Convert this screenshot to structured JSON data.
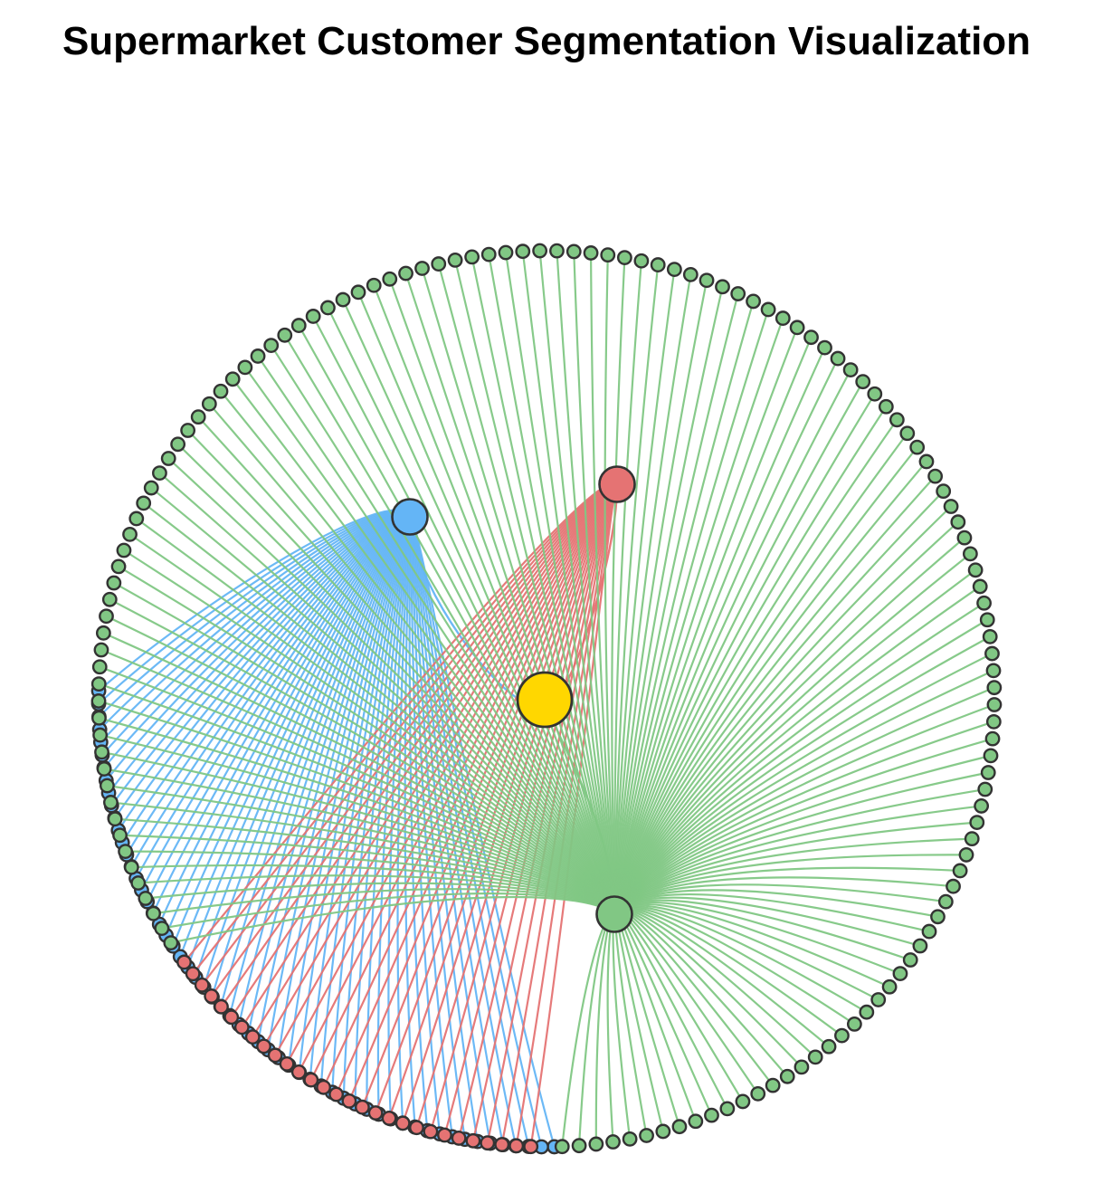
{
  "title": "Supermarket Customer Segmentation Visualization",
  "diagram": {
    "type": "radial-tree",
    "root": {
      "color": "#FFD700"
    },
    "segments": [
      {
        "id": "blue",
        "color": "#64B5F6",
        "leaf_count": 57
      },
      {
        "id": "red",
        "color": "#E57373",
        "leaf_count": 29
      },
      {
        "id": "green",
        "color": "#81C784",
        "leaf_count": 139
      }
    ],
    "node_stroke_color": "#333333"
  }
}
